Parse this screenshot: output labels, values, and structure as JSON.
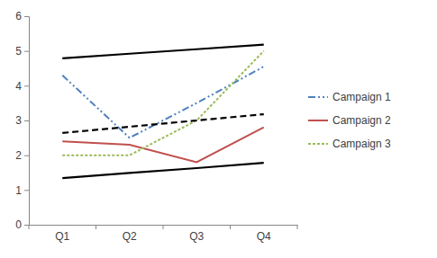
{
  "chart_data": {
    "type": "line",
    "categories": [
      "Q1",
      "Q2",
      "Q3",
      "Q4"
    ],
    "series": [
      {
        "name": "Campaign 1",
        "color": "#4f81bd",
        "line_style": "dash-dot",
        "values": [
          4.3,
          2.5,
          3.5,
          4.55
        ]
      },
      {
        "name": "Campaign 2",
        "color": "#c0504d",
        "line_style": "solid",
        "values": [
          2.4,
          2.3,
          1.8,
          2.8
        ]
      },
      {
        "name": "Campaign 3",
        "color": "#9bbb59",
        "line_style": "dotted",
        "values": [
          2.0,
          2.0,
          3.0,
          5.0
        ]
      },
      {
        "color": "#000000",
        "line_style": "solid",
        "values": [
          4.79,
          4.92,
          5.05,
          5.18
        ]
      },
      {
        "color": "#000000",
        "line_style": "dashed",
        "values": [
          2.64,
          2.82,
          3.0,
          3.18
        ]
      },
      {
        "color": "#000000",
        "line_style": "solid",
        "values": [
          1.34,
          1.49,
          1.63,
          1.78
        ]
      }
    ],
    "ylim": [
      0,
      6
    ],
    "yticks": [
      0,
      1,
      2,
      3,
      4,
      5,
      6
    ],
    "grid": false,
    "legend": "right"
  }
}
